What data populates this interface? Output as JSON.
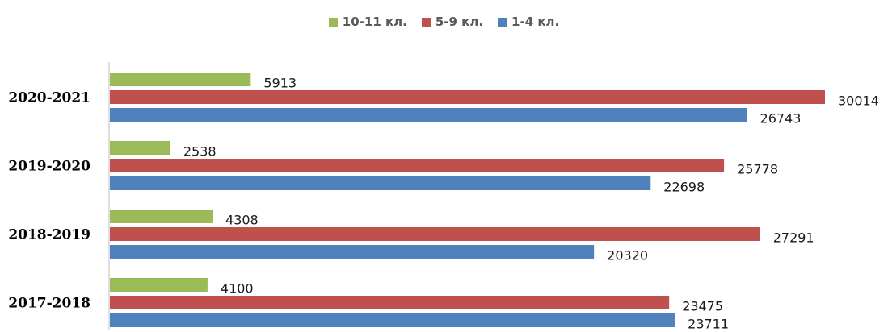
{
  "chart_data": {
    "type": "bar",
    "orientation": "horizontal",
    "categories": [
      "2020-2021",
      "2019-2020",
      "2018-2019",
      "2017-2018"
    ],
    "series": [
      {
        "name": "10-11 кл.",
        "color": "#9bbb59",
        "values": [
          5913,
          2538,
          4308,
          4100
        ]
      },
      {
        "name": "5-9 кл.",
        "color": "#c0504d",
        "values": [
          30014,
          25778,
          27291,
          23475
        ]
      },
      {
        "name": "1-4 кл.",
        "color": "#4f81bd",
        "values": [
          26743,
          22698,
          20320,
          23711
        ]
      }
    ],
    "xlim": [
      0,
      30000
    ],
    "grid": false,
    "legend_position": "top",
    "data_labels": true
  }
}
